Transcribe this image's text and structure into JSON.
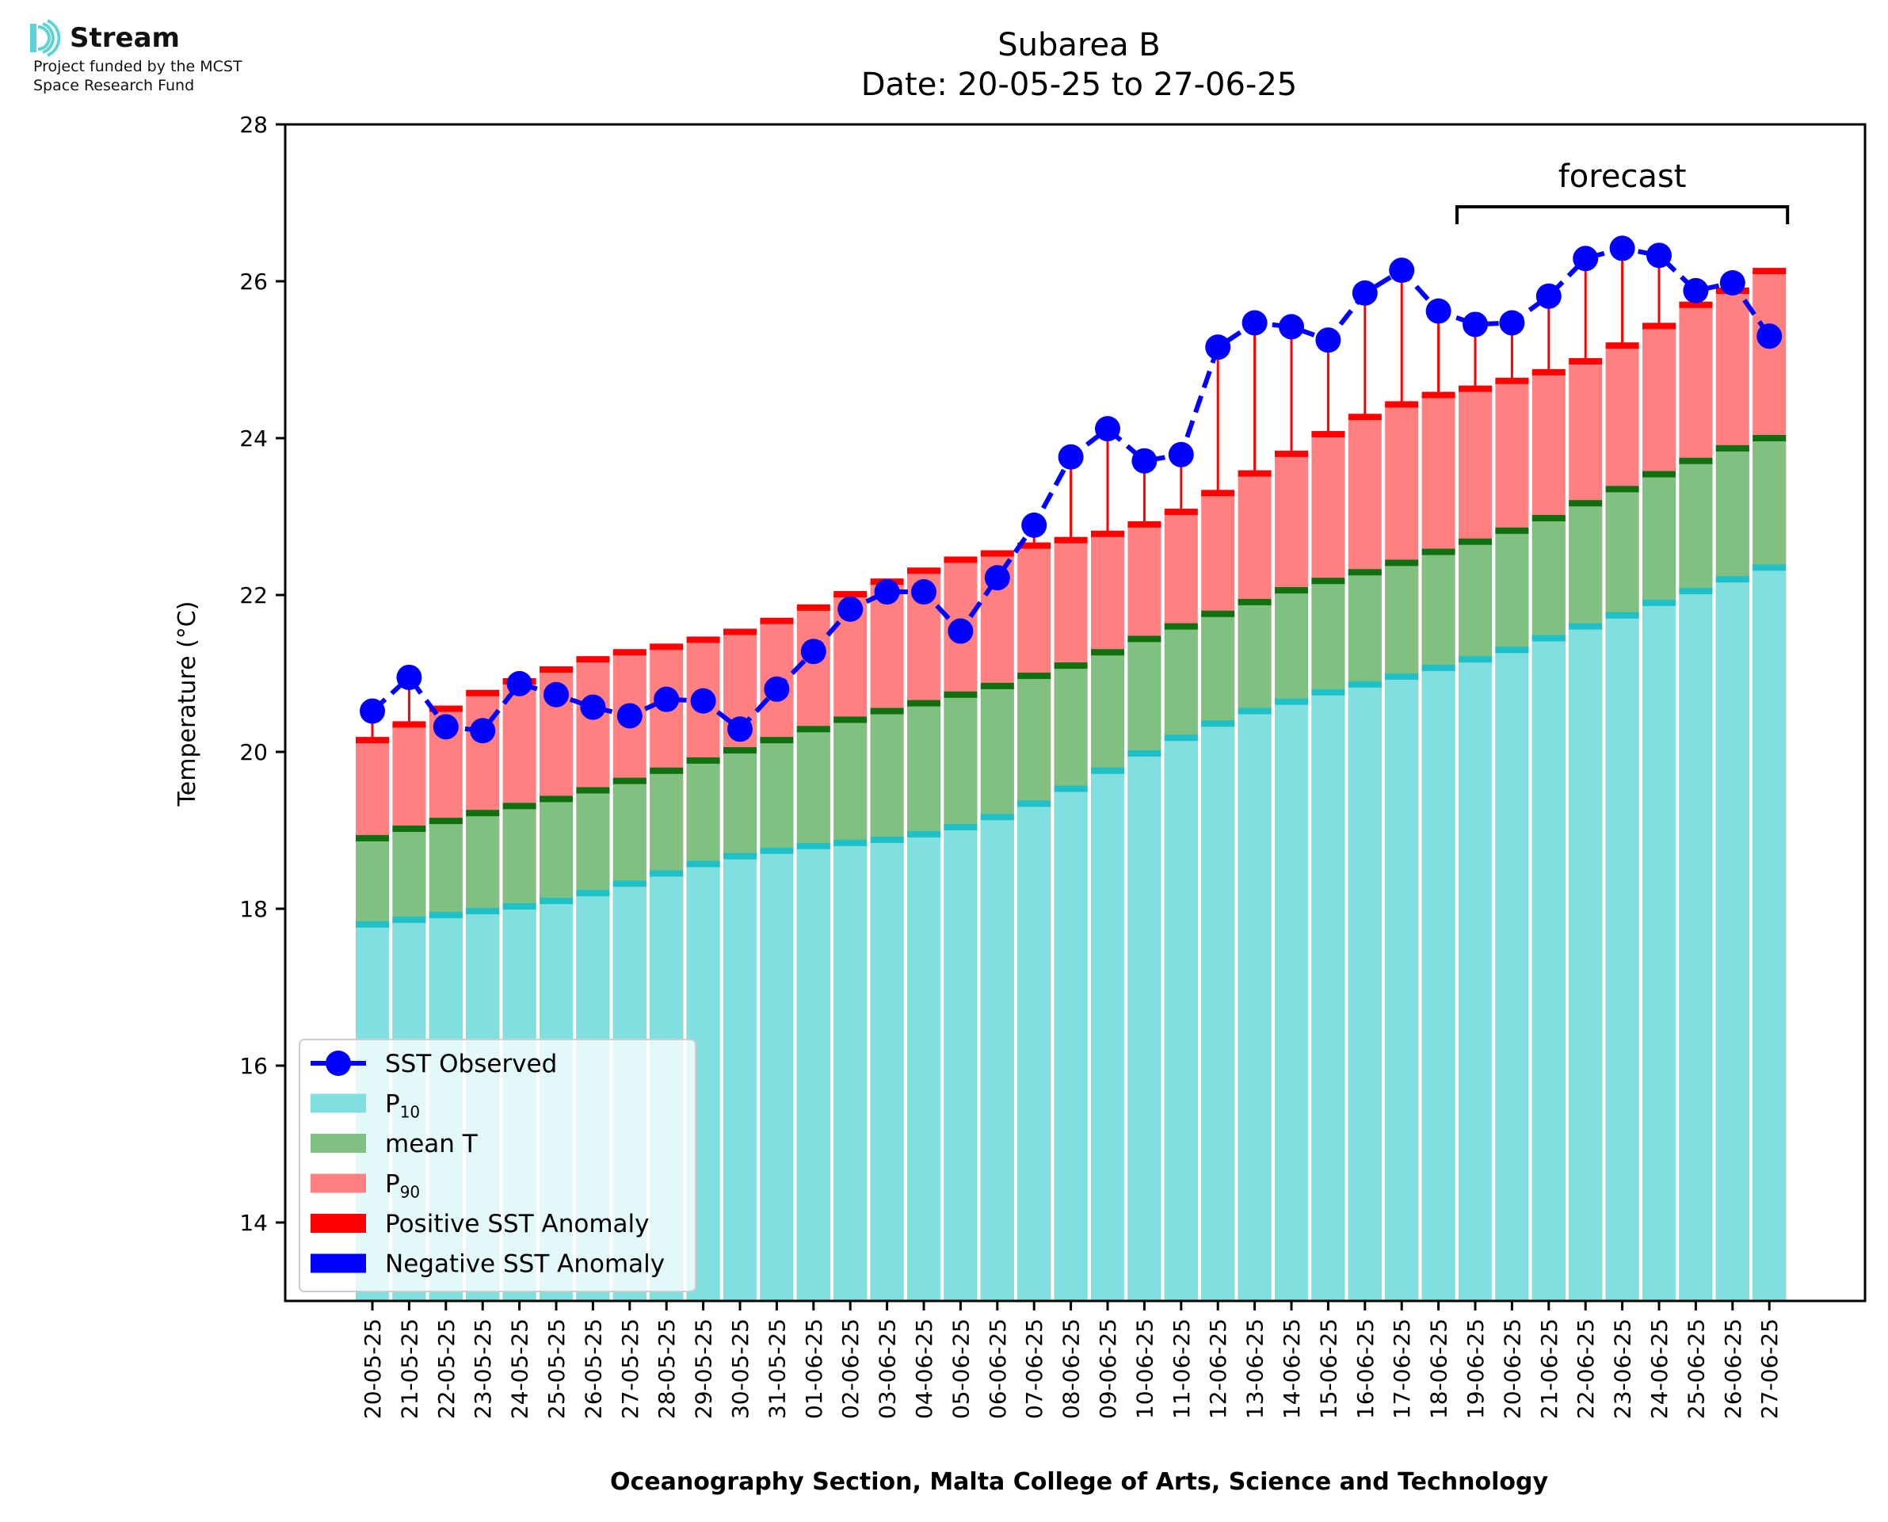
{
  "logo": {
    "name": "Stream",
    "funding_line1": "Project funded by the MCST",
    "funding_line2": "Space Research Fund",
    "color": "#5fd3d3"
  },
  "chart_data": {
    "type": "bar",
    "title": "Subarea B",
    "subtitle": "Date: 20-05-25 to 27-06-25",
    "xlabel": "Oceanography Section, Malta College of Arts, Science and Technology",
    "ylabel": "Temperature (°C)",
    "ylim": [
      13,
      28
    ],
    "yticks": [
      14,
      16,
      18,
      20,
      22,
      24,
      26,
      28
    ],
    "grid": false,
    "legend_position": "lower-left",
    "forecast": {
      "label": "forecast",
      "from": "19-06-25",
      "to": "27-06-25"
    },
    "categories": [
      "20-05-25",
      "21-05-25",
      "22-05-25",
      "23-05-25",
      "24-05-25",
      "25-05-25",
      "26-05-25",
      "27-05-25",
      "28-05-25",
      "29-05-25",
      "30-05-25",
      "31-05-25",
      "01-06-25",
      "02-06-25",
      "03-06-25",
      "04-06-25",
      "05-06-25",
      "06-06-25",
      "07-06-25",
      "08-06-25",
      "09-06-25",
      "10-06-25",
      "11-06-25",
      "12-06-25",
      "13-06-25",
      "14-06-25",
      "15-06-25",
      "16-06-25",
      "17-06-25",
      "18-06-25",
      "19-06-25",
      "20-06-25",
      "21-06-25",
      "22-06-25",
      "23-06-25",
      "24-06-25",
      "25-06-25",
      "26-06-25",
      "27-06-25"
    ],
    "series": [
      {
        "name": "P10",
        "color": "#80dfdf",
        "edge_color": "#20c0c8",
        "values": [
          17.8,
          17.86,
          17.92,
          17.97,
          18.03,
          18.1,
          18.2,
          18.32,
          18.45,
          18.57,
          18.67,
          18.74,
          18.8,
          18.84,
          18.88,
          18.95,
          19.04,
          19.17,
          19.34,
          19.53,
          19.76,
          19.98,
          20.18,
          20.36,
          20.52,
          20.64,
          20.76,
          20.86,
          20.96,
          21.07,
          21.18,
          21.3,
          21.45,
          21.6,
          21.74,
          21.9,
          22.05,
          22.2,
          22.35
        ]
      },
      {
        "name": "mean T",
        "color": "#80c080",
        "edge_color": "#107010",
        "values": [
          18.9,
          19.02,
          19.12,
          19.22,
          19.31,
          19.4,
          19.51,
          19.63,
          19.76,
          19.89,
          20.02,
          20.15,
          20.29,
          20.41,
          20.52,
          20.62,
          20.73,
          20.84,
          20.97,
          21.1,
          21.27,
          21.44,
          21.6,
          21.76,
          21.91,
          22.06,
          22.18,
          22.29,
          22.41,
          22.55,
          22.68,
          22.82,
          22.98,
          23.17,
          23.35,
          23.54,
          23.71,
          23.87,
          24.0
        ]
      },
      {
        "name": "P90",
        "color": "#ff8080",
        "edge_color": "#ff0000",
        "values": [
          20.15,
          20.35,
          20.55,
          20.75,
          20.9,
          21.05,
          21.18,
          21.27,
          21.34,
          21.43,
          21.53,
          21.67,
          21.84,
          22.01,
          22.17,
          22.31,
          22.45,
          22.53,
          22.63,
          22.7,
          22.78,
          22.9,
          23.06,
          23.3,
          23.55,
          23.8,
          24.05,
          24.27,
          24.43,
          24.55,
          24.63,
          24.73,
          24.84,
          24.98,
          25.18,
          25.43,
          25.7,
          25.88,
          26.13
        ]
      },
      {
        "name": "SST Observed",
        "color": "#0000ff",
        "values": [
          20.52,
          20.95,
          20.32,
          20.27,
          20.87,
          20.73,
          20.57,
          20.46,
          20.67,
          20.65,
          20.29,
          20.8,
          21.28,
          21.82,
          22.04,
          22.04,
          21.54,
          22.22,
          22.89,
          23.76,
          24.12,
          23.71,
          23.79,
          25.16,
          25.47,
          25.42,
          25.25,
          25.85,
          26.14,
          25.62,
          25.45,
          25.47,
          25.81,
          26.29,
          26.42,
          26.33,
          25.88,
          25.98,
          25.3
        ]
      }
    ],
    "legend": [
      {
        "label": "SST Observed",
        "kind": "line-marker",
        "color": "#0000ff"
      },
      {
        "label": "P",
        "sub": "10",
        "kind": "patch",
        "color": "#80dfdf"
      },
      {
        "label": "mean T",
        "kind": "patch",
        "color": "#80c080"
      },
      {
        "label": "P",
        "sub": "90",
        "kind": "patch",
        "color": "#ff8080"
      },
      {
        "label": "Positive SST Anomaly",
        "kind": "patch",
        "color": "#ff0000"
      },
      {
        "label": "Negative SST Anomaly",
        "kind": "patch",
        "color": "#0000ff"
      }
    ]
  }
}
